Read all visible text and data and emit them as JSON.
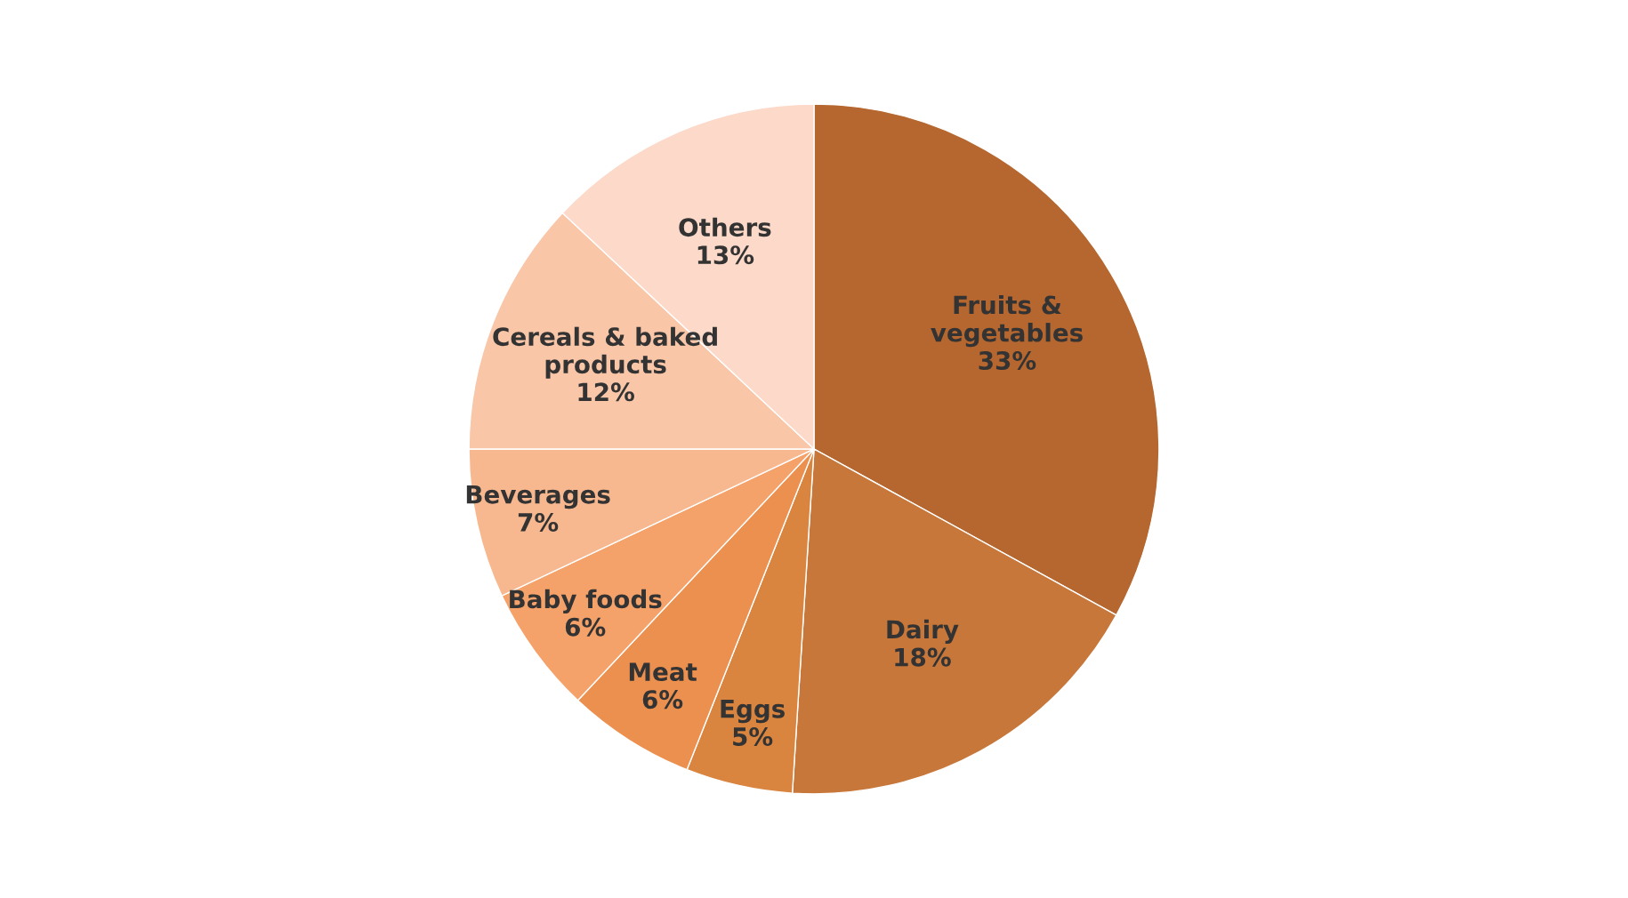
{
  "chart_data": {
    "type": "pie",
    "categories": [
      "Fruits &\nvegetables",
      "Dairy",
      "Eggs",
      "Meat",
      "Baby foods",
      "Beverages",
      "Cereals & baked\nproducts",
      "Others"
    ],
    "values": [
      33,
      18,
      5,
      6,
      6,
      7,
      12,
      13
    ],
    "value_labels": [
      "33%",
      "18%",
      "5%",
      "6%",
      "6%",
      "7%",
      "12%",
      "13%"
    ],
    "colors": [
      "#b5672f",
      "#c8773a",
      "#d9843f",
      "#ec9050",
      "#f5a26a",
      "#f8b88f",
      "#f9c6a8",
      "#fcd9c8"
    ]
  }
}
